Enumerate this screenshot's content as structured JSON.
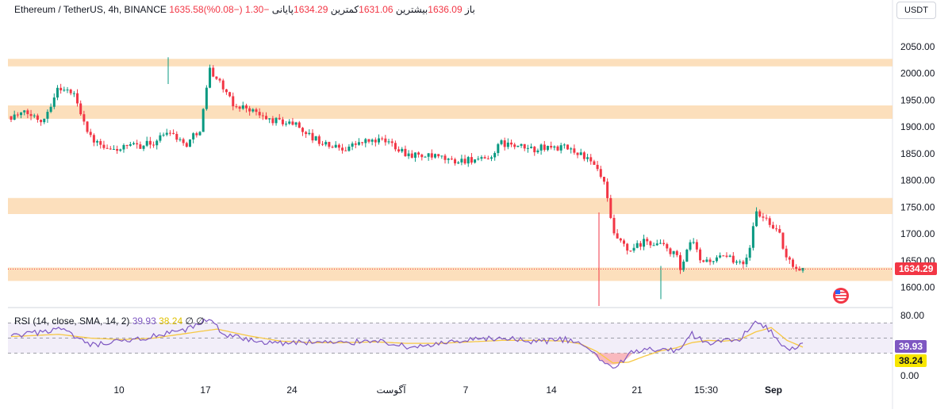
{
  "header": {
    "symbol": "Ethereum / TetherUS, 4h, BINANCE",
    "open_label": "باز",
    "open": "1635.58",
    "high_label": "بیشترین",
    "high": "1636.09",
    "low_label": "کمترین",
    "low": "1631.06",
    "close_label": "پایانی",
    "close": "1634.29",
    "change": "−1.30 (−0.08%)"
  },
  "currency_button": "USDT",
  "price_tag": "1634.29",
  "rsi": {
    "title": "RSI (14, close, SMA, 14, 2)",
    "value": "39.93",
    "sma_value": "38.24",
    "extra": "∅ ∅",
    "tag_value": "39.93",
    "tag_sma": "38.24"
  },
  "colors": {
    "up": "#089981",
    "down": "#f23645",
    "zone": "#fcd9b0",
    "rsi_line": "#7e57c2",
    "rsi_sma": "#f7c843",
    "rsi_band": "#ede7f6",
    "price_tag_bg": "#f23645",
    "flag_icon": "#f23645"
  },
  "chart_data": {
    "type": "candlestick",
    "title": "Ethereum / TetherUS, 4h, BINANCE",
    "ylim": [
      1580,
      2090
    ],
    "yticks": [
      "2050.00",
      "2000.00",
      "1950.00",
      "1900.00",
      "1850.00",
      "1800.00",
      "1750.00",
      "1700.00",
      "1650.00",
      "1600.00"
    ],
    "xticks": [
      "10",
      "17",
      "24",
      "آگوست",
      "7",
      "14",
      "21",
      "15:30",
      "Sep"
    ],
    "zones": [
      [
        2013,
        2027
      ],
      [
        1915,
        1940
      ],
      [
        1737,
        1767
      ],
      [
        1612,
        1637
      ]
    ],
    "last_price": 1634.29,
    "close_path": [
      [
        0,
        1920
      ],
      [
        0.02,
        1925
      ],
      [
        0.04,
        1912
      ],
      [
        0.06,
        1975
      ],
      [
        0.08,
        1960
      ],
      [
        0.1,
        1880
      ],
      [
        0.12,
        1855
      ],
      [
        0.14,
        1860
      ],
      [
        0.16,
        1865
      ],
      [
        0.18,
        1870
      ],
      [
        0.2,
        1895
      ],
      [
        0.22,
        1865
      ],
      [
        0.24,
        1900
      ],
      [
        0.25,
        2010
      ],
      [
        0.265,
        1980
      ],
      [
        0.28,
        1940
      ],
      [
        0.3,
        1935
      ],
      [
        0.32,
        1915
      ],
      [
        0.34,
        1910
      ],
      [
        0.36,
        1905
      ],
      [
        0.38,
        1880
      ],
      [
        0.4,
        1865
      ],
      [
        0.42,
        1860
      ],
      [
        0.44,
        1870
      ],
      [
        0.46,
        1875
      ],
      [
        0.48,
        1870
      ],
      [
        0.5,
        1850
      ],
      [
        0.52,
        1845
      ],
      [
        0.54,
        1842
      ],
      [
        0.56,
        1835
      ],
      [
        0.58,
        1840
      ],
      [
        0.6,
        1835
      ],
      [
        0.62,
        1870
      ],
      [
        0.64,
        1862
      ],
      [
        0.66,
        1858
      ],
      [
        0.68,
        1862
      ],
      [
        0.7,
        1860
      ],
      [
        0.72,
        1850
      ],
      [
        0.74,
        1820
      ],
      [
        0.75,
        1790
      ],
      [
        0.76,
        1700
      ],
      [
        0.78,
        1665
      ],
      [
        0.8,
        1685
      ],
      [
        0.82,
        1680
      ],
      [
        0.84,
        1660
      ],
      [
        0.845,
        1630
      ],
      [
        0.86,
        1690
      ],
      [
        0.87,
        1650
      ],
      [
        0.88,
        1650
      ],
      [
        0.9,
        1655
      ],
      [
        0.92,
        1650
      ],
      [
        0.93,
        1650
      ],
      [
        0.94,
        1740
      ],
      [
        0.95,
        1730
      ],
      [
        0.96,
        1720
      ],
      [
        0.97,
        1700
      ],
      [
        0.98,
        1650
      ],
      [
        0.99,
        1640
      ],
      [
        1,
        1634
      ]
    ],
    "rsi_ylim": [
      0,
      80
    ],
    "rsi_yticks": [
      "80.00",
      "0.00"
    ],
    "rsi_band": [
      30,
      70
    ],
    "rsi_path": [
      [
        0,
        52
      ],
      [
        0.04,
        58
      ],
      [
        0.06,
        63
      ],
      [
        0.1,
        40
      ],
      [
        0.14,
        45
      ],
      [
        0.18,
        52
      ],
      [
        0.22,
        60
      ],
      [
        0.25,
        75
      ],
      [
        0.27,
        55
      ],
      [
        0.3,
        47
      ],
      [
        0.34,
        43
      ],
      [
        0.38,
        45
      ],
      [
        0.42,
        43
      ],
      [
        0.46,
        48
      ],
      [
        0.5,
        38
      ],
      [
        0.54,
        42
      ],
      [
        0.58,
        47
      ],
      [
        0.62,
        50
      ],
      [
        0.66,
        45
      ],
      [
        0.7,
        48
      ],
      [
        0.72,
        42
      ],
      [
        0.74,
        26
      ],
      [
        0.76,
        9
      ],
      [
        0.78,
        28
      ],
      [
        0.8,
        37
      ],
      [
        0.82,
        35
      ],
      [
        0.84,
        33
      ],
      [
        0.86,
        55
      ],
      [
        0.88,
        43
      ],
      [
        0.9,
        47
      ],
      [
        0.92,
        45
      ],
      [
        0.94,
        76
      ],
      [
        0.96,
        59
      ],
      [
        0.97,
        42
      ],
      [
        0.98,
        35
      ],
      [
        1,
        40
      ]
    ],
    "rsi_sma_path": [
      [
        0,
        52
      ],
      [
        0.06,
        55
      ],
      [
        0.1,
        50
      ],
      [
        0.14,
        48
      ],
      [
        0.18,
        50
      ],
      [
        0.22,
        56
      ],
      [
        0.26,
        62
      ],
      [
        0.3,
        53
      ],
      [
        0.34,
        46
      ],
      [
        0.38,
        44
      ],
      [
        0.42,
        44
      ],
      [
        0.46,
        45
      ],
      [
        0.5,
        43
      ],
      [
        0.54,
        43
      ],
      [
        0.58,
        45
      ],
      [
        0.62,
        47
      ],
      [
        0.66,
        47
      ],
      [
        0.7,
        46
      ],
      [
        0.72,
        42
      ],
      [
        0.74,
        32
      ],
      [
        0.76,
        17
      ],
      [
        0.78,
        18
      ],
      [
        0.8,
        26
      ],
      [
        0.82,
        33
      ],
      [
        0.84,
        37
      ],
      [
        0.86,
        44
      ],
      [
        0.88,
        47
      ],
      [
        0.9,
        46
      ],
      [
        0.92,
        48
      ],
      [
        0.94,
        58
      ],
      [
        0.96,
        64
      ],
      [
        0.98,
        47
      ],
      [
        1,
        38
      ]
    ]
  }
}
